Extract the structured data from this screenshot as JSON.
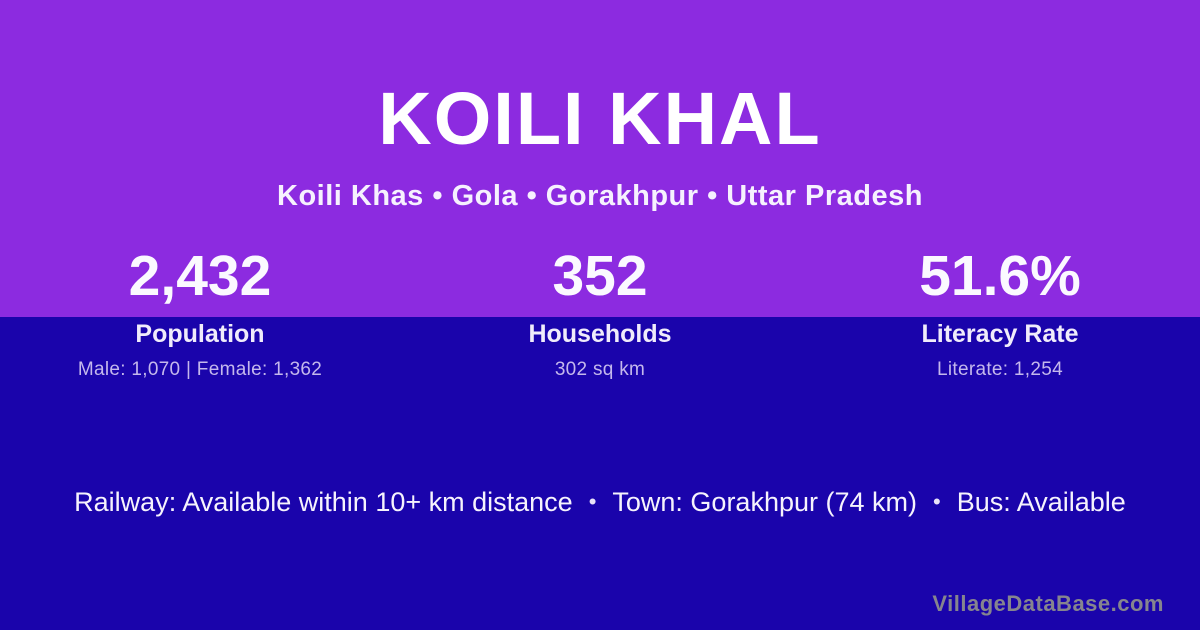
{
  "page": {
    "title": "KOILI KHAL",
    "subtitle": "Koili Khas • Gola • Gorakhpur • Uttar Pradesh"
  },
  "stats": [
    {
      "value": "2,432",
      "label": "Population",
      "detail": "Male: 1,070 | Female: 1,362"
    },
    {
      "value": "352",
      "label": "Households",
      "detail": "302 sq km"
    },
    {
      "value": "51.6%",
      "label": "Literacy Rate",
      "detail": "Literate: 1,254"
    }
  ],
  "transport": {
    "separator": "•",
    "items": [
      "Railway: Available within 10+ km distance",
      "Town: Gorakhpur (74 km)",
      "Bus: Available"
    ]
  },
  "watermark": "VillageDataBase.com",
  "colors": {
    "purple": "#8c2be0",
    "navy": "#1a04ab",
    "white": "#ffffff",
    "lavender": "#c4b8ec",
    "watermark": "#86858e"
  }
}
